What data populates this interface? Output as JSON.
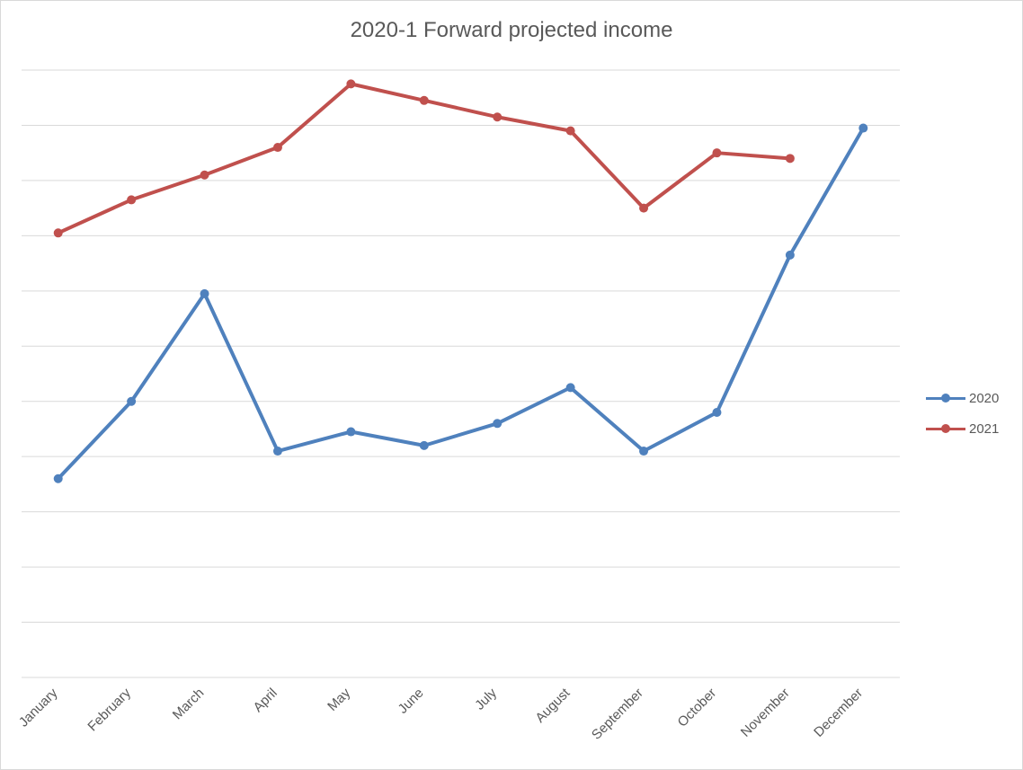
{
  "chart_data": {
    "type": "line",
    "title": "2020-1 Forward projected income",
    "categories": [
      "January",
      "February",
      "March",
      "April",
      "May",
      "June",
      "July",
      "August",
      "September",
      "October",
      "November",
      "December"
    ],
    "series": [
      {
        "name": "2020",
        "color": "#4f81bd",
        "values": [
          2.6,
          4.0,
          5.95,
          3.1,
          3.45,
          3.2,
          3.6,
          4.25,
          3.1,
          3.8,
          6.65,
          8.95
        ]
      },
      {
        "name": "2021",
        "color": "#c0504d",
        "values": [
          7.05,
          7.65,
          8.1,
          8.6,
          9.75,
          9.45,
          9.15,
          8.9,
          7.5,
          8.5,
          8.4,
          null
        ]
      }
    ],
    "ylim": [
      -1,
      10
    ],
    "y_ticks_visible": false,
    "grid": true,
    "legend_position": "right"
  }
}
